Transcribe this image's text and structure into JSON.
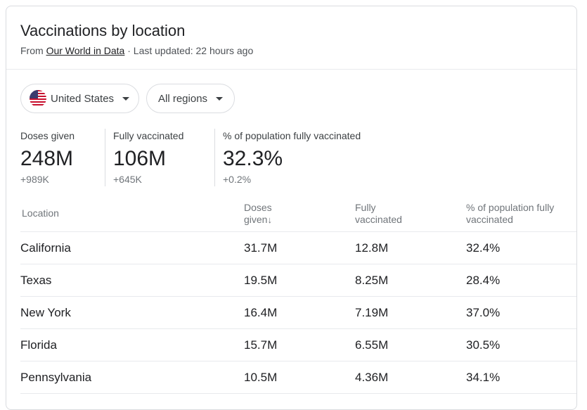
{
  "header": {
    "title": "Vaccinations by location",
    "source_prefix": "From",
    "source_link": "Our World in Data",
    "updated": " · Last updated: 22 hours ago"
  },
  "filters": {
    "country": "United States",
    "region": "All regions"
  },
  "stats": [
    {
      "label": "Doses given",
      "value": "248M",
      "delta": "+989K"
    },
    {
      "label": "Fully vaccinated",
      "value": "106M",
      "delta": "+645K"
    },
    {
      "label": "% of population fully vaccinated",
      "value": "32.3%",
      "delta": "+0.2%"
    }
  ],
  "table": {
    "headers": {
      "location": "Location",
      "doses_line1": "Doses",
      "doses_line2": "given",
      "doses_sort_arrow": "↓",
      "fully_line1": "Fully",
      "fully_line2": "vaccinated",
      "pct_line1": "% of population fully",
      "pct_line2": "vaccinated"
    },
    "rows": [
      {
        "location": "California",
        "doses": "31.7M",
        "fully": "12.8M",
        "pct": "32.4%"
      },
      {
        "location": "Texas",
        "doses": "19.5M",
        "fully": "8.25M",
        "pct": "28.4%"
      },
      {
        "location": "New York",
        "doses": "16.4M",
        "fully": "7.19M",
        "pct": "37.0%"
      },
      {
        "location": "Florida",
        "doses": "15.7M",
        "fully": "6.55M",
        "pct": "30.5%"
      },
      {
        "location": "Pennsylvania",
        "doses": "10.5M",
        "fully": "4.36M",
        "pct": "34.1%"
      }
    ]
  },
  "icons": {
    "flag": "us-flag-icon",
    "dropdown": "caret-down-icon",
    "sort": "arrow-down-icon"
  }
}
